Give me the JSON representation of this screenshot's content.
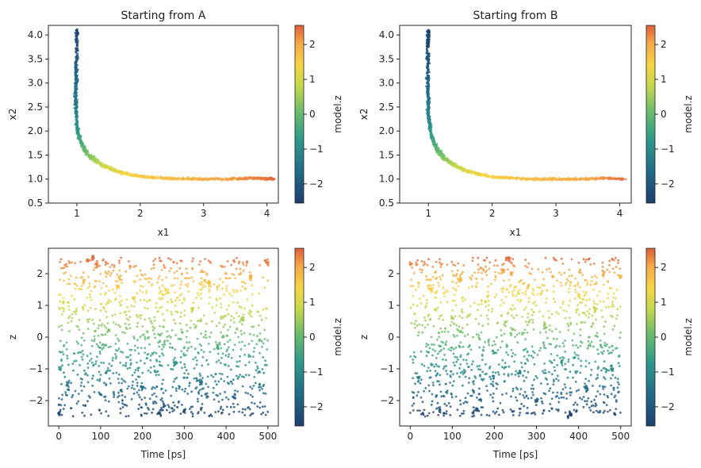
{
  "figure": {
    "background": "#ffffff"
  },
  "colormap": {
    "name": "blue-green-yellow-orange",
    "stops": [
      [
        0.0,
        "#1d3f6e"
      ],
      [
        0.18,
        "#216b8a"
      ],
      [
        0.36,
        "#2d9a8a"
      ],
      [
        0.52,
        "#6cbd6a"
      ],
      [
        0.66,
        "#c6d84a"
      ],
      [
        0.78,
        "#f7d443"
      ],
      [
        0.9,
        "#f6a845"
      ],
      [
        1.0,
        "#df5e3a"
      ]
    ]
  },
  "chart_data": [
    {
      "id": "A_xy",
      "type": "scatter",
      "title": "Starting from A",
      "xlabel": "x1",
      "ylabel": "x2",
      "xlim": [
        0.55,
        4.18
      ],
      "ylim": [
        0.5,
        4.2
      ],
      "xticks": [
        "1",
        "2",
        "3",
        "4"
      ],
      "xtick_values": [
        1,
        2,
        3,
        4
      ],
      "yticks": [
        "0.5",
        "1.0",
        "1.5",
        "2.0",
        "2.5",
        "3.0",
        "3.5",
        "4.0"
      ],
      "ytick_values": [
        0.5,
        1.0,
        1.5,
        2.0,
        2.5,
        3.0,
        3.5,
        4.0
      ],
      "colorbar": {
        "label": "model.z",
        "range": [
          -2.55,
          2.55
        ],
        "ticks": [
          "−2",
          "−1",
          "0",
          "1",
          "2"
        ],
        "tick_values": [
          -2,
          -1,
          0,
          1,
          2
        ]
      },
      "series": [
        {
          "color_by": "model.z",
          "x": [
            1.0,
            1.0,
            0.99,
            0.99,
            0.98,
            0.99,
            1.0,
            1.03,
            1.07,
            1.13,
            1.2,
            1.3,
            1.42,
            1.56,
            1.72,
            1.9,
            2.1,
            2.35,
            2.6,
            2.9,
            3.1,
            3.4,
            3.6,
            3.8,
            4.0,
            4.1
          ],
          "y": [
            4.1,
            3.7,
            3.3,
            3.0,
            2.7,
            2.4,
            2.1,
            1.9,
            1.75,
            1.6,
            1.48,
            1.38,
            1.28,
            1.2,
            1.13,
            1.08,
            1.04,
            1.02,
            1.01,
            1.0,
            1.0,
            1.0,
            1.01,
            1.02,
            1.01,
            1.0
          ],
          "z": [
            -2.4,
            -2.3,
            -1.9,
            -1.6,
            -1.4,
            -1.2,
            -0.9,
            -0.6,
            -0.3,
            0.0,
            0.3,
            0.6,
            0.9,
            1.1,
            1.3,
            1.5,
            1.6,
            1.7,
            1.8,
            1.9,
            2.0,
            2.1,
            2.2,
            2.3,
            2.4,
            2.5
          ]
        }
      ]
    },
    {
      "id": "B_xy",
      "type": "scatter",
      "title": "Starting from B",
      "xlabel": "x1",
      "ylabel": "x2",
      "xlim": [
        0.55,
        4.18
      ],
      "ylim": [
        0.5,
        4.2
      ],
      "xticks": [
        "1",
        "2",
        "3",
        "4"
      ],
      "xtick_values": [
        1,
        2,
        3,
        4
      ],
      "yticks": [
        "0.5",
        "1.0",
        "1.5",
        "2.0",
        "2.5",
        "3.0",
        "3.5",
        "4.0"
      ],
      "ytick_values": [
        0.5,
        1.0,
        1.5,
        2.0,
        2.5,
        3.0,
        3.5,
        4.0
      ],
      "colorbar": {
        "label": "model.z",
        "range": [
          -2.55,
          2.55
        ],
        "ticks": [
          "−2",
          "−1",
          "0",
          "1",
          "2"
        ],
        "tick_values": [
          -2,
          -1,
          0,
          1,
          2
        ]
      },
      "series": [
        {
          "color_by": "model.z",
          "x": [
            1.0,
            0.99,
            0.99,
            0.99,
            1.0,
            1.0,
            1.02,
            1.05,
            1.1,
            1.16,
            1.24,
            1.35,
            1.48,
            1.62,
            1.8,
            2.0,
            2.2,
            2.45,
            2.7,
            2.95,
            3.3,
            3.6,
            3.85,
            4.05
          ],
          "y": [
            4.1,
            3.8,
            3.4,
            3.0,
            2.7,
            2.4,
            2.1,
            1.9,
            1.72,
            1.58,
            1.45,
            1.34,
            1.24,
            1.16,
            1.1,
            1.05,
            1.03,
            1.01,
            1.0,
            1.0,
            1.0,
            1.01,
            1.02,
            1.0
          ],
          "z": [
            -2.4,
            -2.3,
            -2.1,
            -1.8,
            -1.5,
            -1.2,
            -0.9,
            -0.6,
            -0.3,
            0.0,
            0.3,
            0.6,
            0.9,
            1.1,
            1.3,
            1.5,
            1.6,
            1.7,
            1.8,
            1.9,
            2.0,
            2.1,
            2.3,
            2.4
          ]
        }
      ]
    },
    {
      "id": "A_time",
      "type": "scatter",
      "xlabel": "Time [ps]",
      "ylabel": "z",
      "xlim": [
        -25,
        525
      ],
      "ylim": [
        -2.8,
        2.8
      ],
      "xticks": [
        "0",
        "100",
        "200",
        "300",
        "400",
        "500"
      ],
      "xtick_values": [
        0,
        100,
        200,
        300,
        400,
        500
      ],
      "yticks": [
        "−2",
        "−1",
        "0",
        "1",
        "2"
      ],
      "ytick_values": [
        -2,
        -1,
        0,
        1,
        2
      ],
      "colorbar": {
        "label": "model.z",
        "range": [
          -2.55,
          2.55
        ],
        "ticks": [
          "−2",
          "−1",
          "0",
          "1",
          "2"
        ],
        "tick_values": [
          -2,
          -1,
          0,
          1,
          2
        ]
      },
      "series": [
        {
          "color_by": "model.z",
          "x": [
            0,
            20,
            40,
            60,
            70,
            80,
            90,
            100,
            120,
            140,
            160,
            180,
            200,
            220,
            240,
            245,
            250,
            260,
            280,
            300,
            320,
            340,
            360,
            380,
            400,
            420,
            440,
            460,
            480,
            495,
            500
          ],
          "y": [
            -2.4,
            -1.5,
            0.8,
            1.8,
            2.4,
            2.5,
            2.3,
            -1.8,
            0.2,
            1.6,
            -0.9,
            1.2,
            -1.6,
            0.5,
            -2.4,
            -2.3,
            -2.2,
            1.4,
            -0.8,
            -2.3,
            0.9,
            -1.4,
            1.7,
            -0.3,
            2.0,
            -1.9,
            0.6,
            1.9,
            -1.5,
            2.4,
            2.3
          ],
          "z": [
            -2.4,
            -1.5,
            0.8,
            1.8,
            2.4,
            2.5,
            2.3,
            -1.8,
            0.2,
            1.6,
            -0.9,
            1.2,
            -1.6,
            0.5,
            -2.4,
            -2.3,
            -2.2,
            1.4,
            -0.8,
            -2.3,
            0.9,
            -1.4,
            1.7,
            -0.3,
            2.0,
            -1.9,
            0.6,
            1.9,
            -1.5,
            2.4,
            2.3
          ]
        }
      ]
    },
    {
      "id": "B_time",
      "type": "scatter",
      "xlabel": "Time [ps]",
      "ylabel": "z",
      "xlim": [
        -25,
        525
      ],
      "ylim": [
        -2.8,
        2.8
      ],
      "xticks": [
        "0",
        "100",
        "200",
        "300",
        "400",
        "500"
      ],
      "xtick_values": [
        0,
        100,
        200,
        300,
        400,
        500
      ],
      "yticks": [
        "−2",
        "−1",
        "0",
        "1",
        "2"
      ],
      "ytick_values": [
        -2,
        -1,
        0,
        1,
        2
      ],
      "colorbar": {
        "label": "model.z",
        "range": [
          -2.55,
          2.55
        ],
        "ticks": [
          "−2",
          "−1",
          "0",
          "1",
          "2"
        ],
        "tick_values": [
          -2,
          -1,
          0,
          1,
          2
        ]
      },
      "series": [
        {
          "color_by": "model.z",
          "x": [
            0,
            20,
            30,
            50,
            70,
            80,
            100,
            120,
            150,
            160,
            180,
            200,
            220,
            230,
            235,
            240,
            260,
            280,
            300,
            320,
            340,
            360,
            375,
            380,
            400,
            420,
            440,
            460,
            480,
            485,
            500
          ],
          "y": [
            2.3,
            -1.3,
            -2.4,
            1.5,
            -2.3,
            -2.4,
            0.6,
            1.8,
            -2.4,
            -2.3,
            1.1,
            -0.5,
            2.1,
            2.5,
            2.4,
            2.0,
            -1.1,
            1.6,
            -2.0,
            0.4,
            1.9,
            -0.8,
            -2.5,
            -2.4,
            1.3,
            -1.6,
            0.9,
            2.0,
            -1.0,
            -2.4,
            1.9
          ],
          "z": [
            2.3,
            -1.3,
            -2.4,
            1.5,
            -2.3,
            -2.4,
            0.6,
            1.8,
            -2.4,
            -2.3,
            1.1,
            -0.5,
            2.1,
            2.5,
            2.4,
            2.0,
            -1.1,
            1.6,
            -2.0,
            0.4,
            1.9,
            -0.8,
            -2.5,
            -2.4,
            1.3,
            -1.6,
            0.9,
            2.0,
            -1.0,
            -2.4,
            1.9
          ]
        }
      ]
    }
  ]
}
